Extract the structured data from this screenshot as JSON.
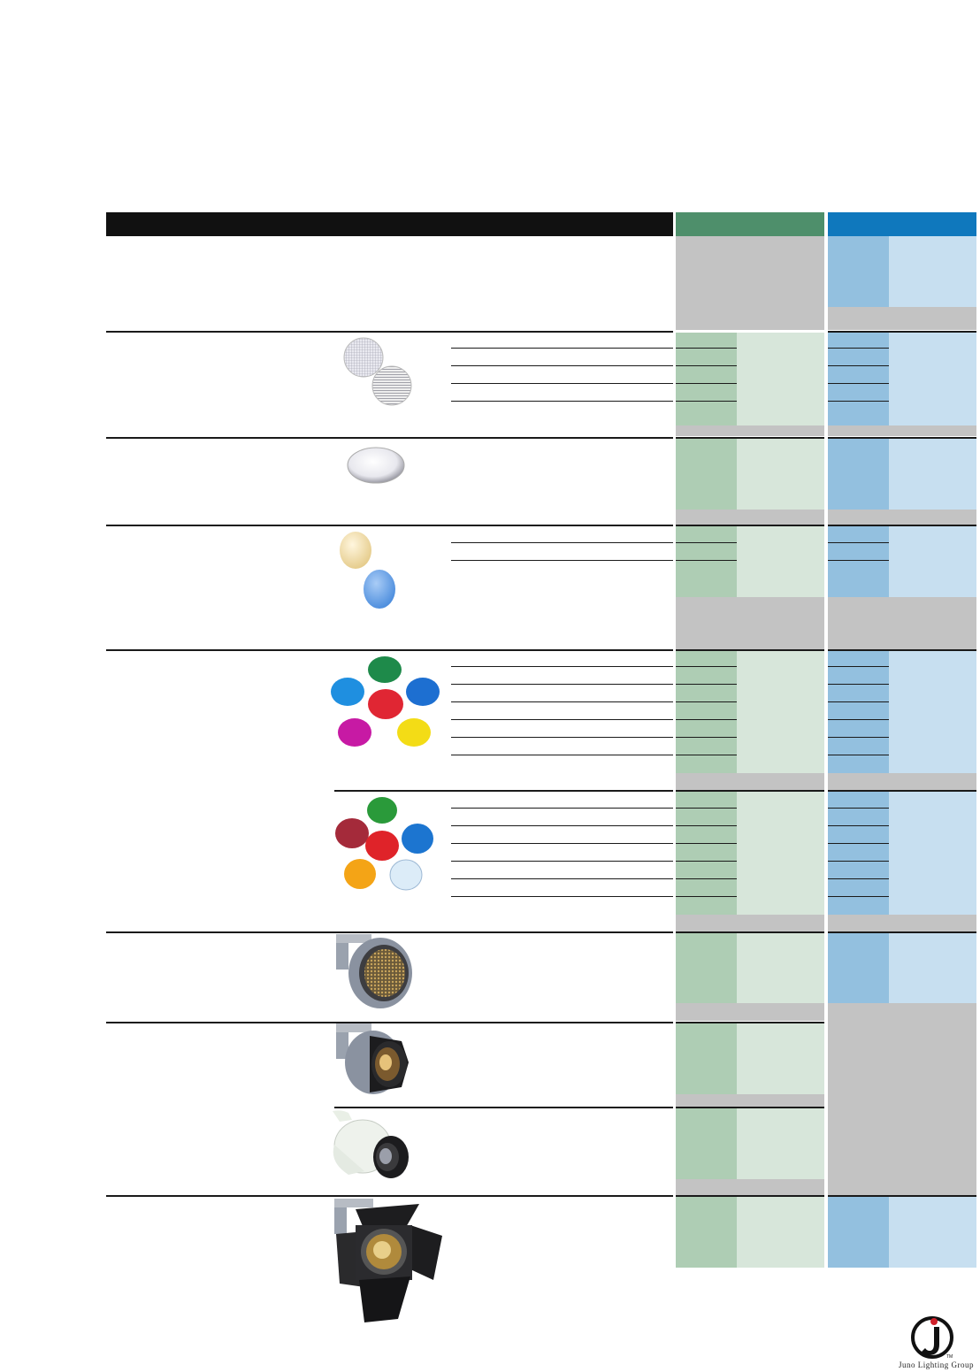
{
  "header": {
    "black_bar_color": "#111111",
    "green_column_color": "#4e8f6b",
    "blue_column_color": "#0f78bd"
  },
  "colors": {
    "green_dark": "#aecdb4",
    "green_light": "#d7e6da",
    "blue_dark": "#93c0df",
    "blue_light": "#c7dff0",
    "gray": "#c3c3c3"
  },
  "sections": [
    {
      "id": "header-block",
      "product_icon": "none"
    },
    {
      "id": "louver-lenses",
      "product_icon": "grid-lens-discs-icon"
    },
    {
      "id": "clear-lens",
      "product_icon": "clear-lens-disc-icon"
    },
    {
      "id": "tinted-filters",
      "product_icon": "amber-blue-filter-discs-icon"
    },
    {
      "id": "color-filters",
      "product_icon": "color-filter-discs-icon"
    },
    {
      "id": "honeycomb-louver",
      "product_icon": "honeycomb-louver-fixture-icon"
    },
    {
      "id": "snoot",
      "product_icon": "snoot-fixture-icon"
    },
    {
      "id": "barn-doors",
      "product_icon": "barn-doors-fixture-icon"
    }
  ],
  "footer": {
    "logo_letter": "J",
    "brand_name": "Juno Lighting Group",
    "trademark": "TM"
  }
}
